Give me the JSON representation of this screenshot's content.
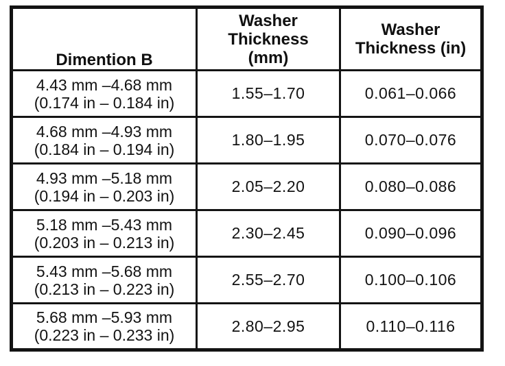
{
  "colors": {
    "border": "#131313",
    "text": "#121212",
    "background": "#ffffff"
  },
  "table": {
    "headers": [
      {
        "id": "dimension-b",
        "lines": [
          "Dimention B"
        ]
      },
      {
        "id": "washer-thickness-mm",
        "lines": [
          "Washer",
          "Thickness",
          "(mm)"
        ]
      },
      {
        "id": "washer-thickness-in",
        "lines": [
          "Washer",
          "Thickness (in)"
        ]
      }
    ],
    "rows": [
      {
        "dimension_b_mm": "4.43 mm –4.68 mm",
        "dimension_b_in": "(0.174 in – 0.184 in)",
        "thickness_mm": "1.55–1.70",
        "thickness_in": "0.061–0.066"
      },
      {
        "dimension_b_mm": "4.68 mm –4.93 mm",
        "dimension_b_in": "(0.184 in – 0.194 in)",
        "thickness_mm": "1.80–1.95",
        "thickness_in": "0.070–0.076"
      },
      {
        "dimension_b_mm": "4.93 mm –5.18 mm",
        "dimension_b_in": "(0.194 in – 0.203 in)",
        "thickness_mm": "2.05–2.20",
        "thickness_in": "0.080–0.086"
      },
      {
        "dimension_b_mm": "5.18 mm –5.43 mm",
        "dimension_b_in": "(0.203 in – 0.213 in)",
        "thickness_mm": "2.30–2.45",
        "thickness_in": "0.090–0.096"
      },
      {
        "dimension_b_mm": "5.43 mm –5.68 mm",
        "dimension_b_in": "(0.213 in – 0.223 in)",
        "thickness_mm": "2.55–2.70",
        "thickness_in": "0.100–0.106"
      },
      {
        "dimension_b_mm": "5.68 mm –5.93 mm",
        "dimension_b_in": "(0.223 in – 0.233 in)",
        "thickness_mm": "2.80–2.95",
        "thickness_in": "0.110–0.116"
      }
    ]
  }
}
